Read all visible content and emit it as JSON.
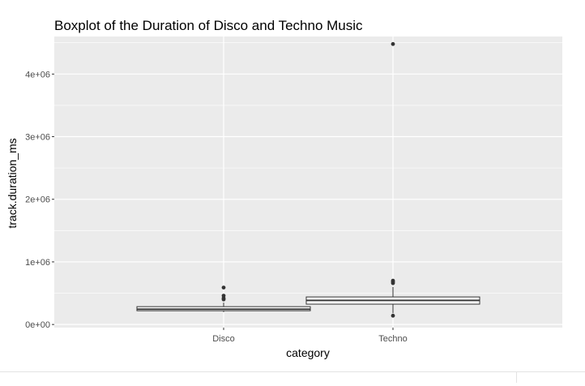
{
  "chart_data": {
    "type": "boxplot",
    "title": "Boxplot of the Duration of Disco and Techno Music",
    "xlabel": "category",
    "ylabel": "track.duration_ms",
    "ylim": [
      -50000,
      4600000
    ],
    "yticks": [
      0,
      1000000,
      2000000,
      3000000,
      4000000
    ],
    "ytick_labels": [
      "0e+00",
      "1e+06",
      "2e+06",
      "3e+06",
      "4e+06"
    ],
    "grid": true,
    "categories": [
      "Disco",
      "Techno"
    ],
    "boxes": [
      {
        "category": "Disco",
        "whisker_low": 200000,
        "q1": 220000,
        "median": 245000,
        "q3": 285000,
        "whisker_high": 350000,
        "outliers": [
          400000,
          420000,
          460000,
          590000
        ]
      },
      {
        "category": "Techno",
        "whisker_low": 180000,
        "q1": 325000,
        "median": 385000,
        "q3": 440000,
        "whisker_high": 600000,
        "outliers": [
          140000,
          660000,
          680000,
          700000,
          4480000
        ]
      }
    ],
    "colors": {
      "panel": "#ebebeb",
      "grid_major": "#ffffff",
      "box_fill": "#ffffff",
      "box_stroke": "#333333",
      "outlier": "#333333",
      "tick": "#333333"
    }
  }
}
